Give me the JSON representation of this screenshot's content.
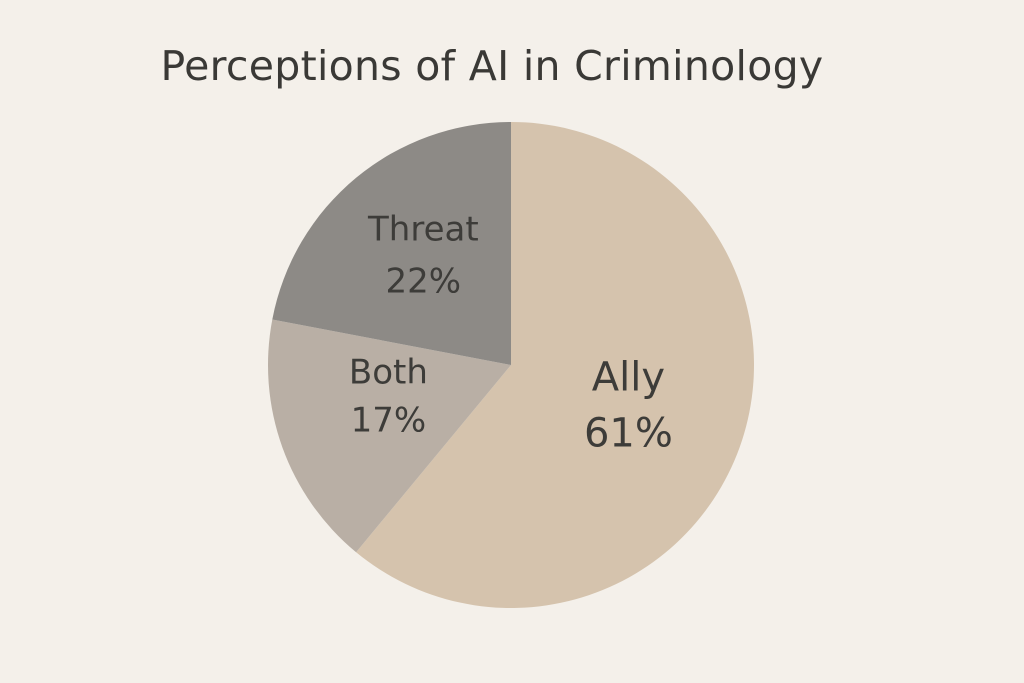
{
  "chart_data": {
    "type": "pie",
    "title": "Perceptions of AI in Criminology",
    "slices": [
      {
        "label": "Ally",
        "value": 61,
        "value_label": "61%",
        "color": "#d5c3ad"
      },
      {
        "label": "Both",
        "value": 17,
        "value_label": "17%",
        "color": "#b9afa5"
      },
      {
        "label": "Threat",
        "value": 22,
        "value_label": "22%",
        "color": "#8d8a86"
      }
    ],
    "legend": "none",
    "grid": false
  }
}
